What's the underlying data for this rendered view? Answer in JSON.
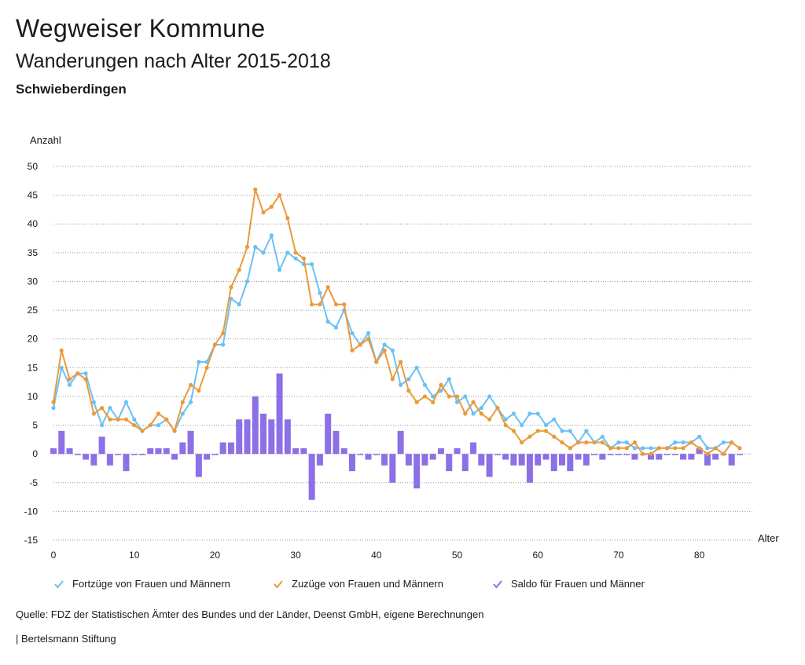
{
  "header": {
    "title": "Wegweiser Kommune",
    "subtitle": "Wanderungen nach Alter 2015-2018",
    "place": "Schwieberdingen"
  },
  "footer": {
    "source": "Quelle: FDZ der Statistischen Ämter des Bundes und der Länder, Deenst GmbH, eigene Berechnungen",
    "brand": "| Bertelsmann Stiftung"
  },
  "chart_data": {
    "type": "line",
    "ylabel": "Anzahl",
    "xlabel": "Alter",
    "ylim": [
      -15,
      50
    ],
    "yticks": [
      50,
      45,
      40,
      35,
      30,
      25,
      20,
      15,
      10,
      5,
      0,
      -5,
      -10,
      -15
    ],
    "xlim": [
      0,
      86
    ],
    "xticks": [
      0,
      10,
      20,
      30,
      40,
      50,
      60,
      70,
      80
    ],
    "grid": "horizontal-dotted",
    "series": [
      {
        "name": "Fortzüge von Frauen und Männern",
        "type": "line",
        "color": "#6cc1f2",
        "values": [
          8,
          15,
          12,
          14,
          14,
          9,
          5,
          8,
          6,
          9,
          6,
          4,
          5,
          5,
          6,
          4,
          7,
          9,
          16,
          16,
          19,
          19,
          27,
          26,
          30,
          36,
          35,
          38,
          32,
          35,
          34,
          33,
          33,
          28,
          23,
          22,
          25,
          21,
          19,
          21,
          16,
          19,
          18,
          12,
          13,
          15,
          12,
          10,
          11,
          13,
          9,
          10,
          7,
          8,
          10,
          8,
          6,
          7,
          5,
          7,
          7,
          5,
          6,
          4,
          4,
          2,
          4,
          2,
          3,
          1,
          2,
          2,
          1,
          1,
          1,
          1,
          1,
          2,
          2,
          2,
          3,
          1,
          1,
          2,
          2,
          1
        ]
      },
      {
        "name": "Zuzüge von Frauen und Männern",
        "type": "line",
        "color": "#ea9a3a",
        "values": [
          9,
          18,
          13,
          14,
          13,
          7,
          8,
          6,
          6,
          6,
          5,
          4,
          5,
          7,
          6,
          4,
          9,
          12,
          11,
          15,
          19,
          21,
          29,
          32,
          36,
          46,
          42,
          43,
          45,
          41,
          35,
          34,
          26,
          26,
          29,
          26,
          26,
          18,
          19,
          20,
          16,
          18,
          13,
          16,
          11,
          9,
          10,
          9,
          12,
          10,
          10,
          7,
          9,
          7,
          6,
          8,
          5,
          4,
          2,
          3,
          4,
          4,
          3,
          2,
          1,
          2,
          2,
          2,
          2,
          1,
          1,
          1,
          2,
          0,
          0,
          1,
          1,
          1,
          1,
          2,
          1,
          0,
          1,
          0,
          2,
          1
        ]
      },
      {
        "name": "Saldo für Frauen und Männer",
        "type": "bar",
        "color": "#8c70e6",
        "values": [
          1,
          4,
          1,
          0,
          -1,
          -2,
          3,
          -2,
          0,
          -3,
          0,
          0,
          1,
          1,
          1,
          -1,
          2,
          4,
          -4,
          -1,
          0,
          2,
          2,
          6,
          6,
          10,
          7,
          6,
          14,
          6,
          1,
          1,
          -8,
          -2,
          7,
          4,
          1,
          -3,
          0,
          -1,
          0,
          -2,
          -5,
          4,
          -2,
          -6,
          -2,
          -1,
          1,
          -3,
          1,
          -3,
          2,
          -2,
          -4,
          0,
          -1,
          -2,
          -2,
          -5,
          -2,
          -1,
          -3,
          -2,
          -3,
          -1,
          -2,
          0,
          -1,
          0,
          0,
          0,
          -1,
          0,
          -1,
          -1,
          0,
          0,
          -1,
          -1,
          1,
          -2,
          -1,
          0,
          -2,
          0
        ]
      }
    ]
  }
}
